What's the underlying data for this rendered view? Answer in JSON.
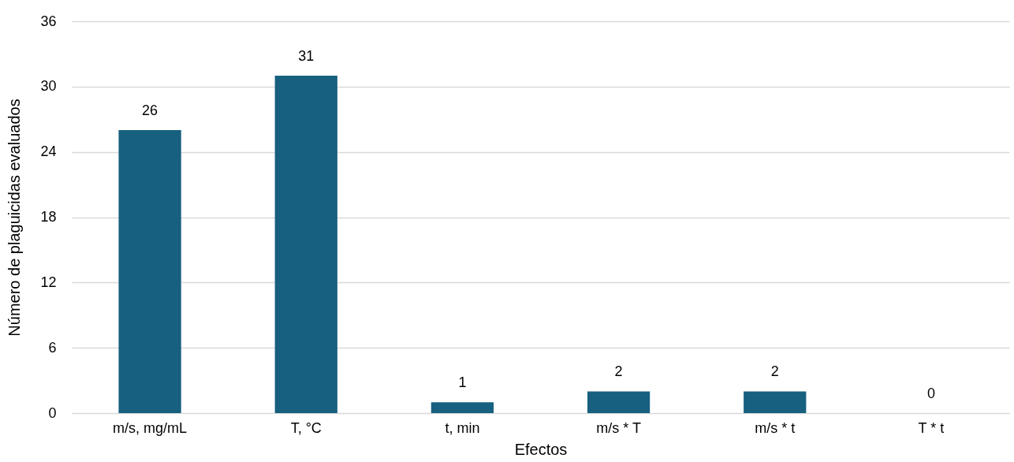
{
  "chart_data": {
    "type": "bar",
    "xlabel": "Efectos",
    "ylabel": "Número de plaguicidas evaluados",
    "categories": [
      "m/s, mg/mL",
      "T, °C",
      "t, min",
      "m/s * T",
      "m/s * t",
      "T * t"
    ],
    "values": [
      26,
      31,
      1,
      2,
      2,
      0
    ],
    "color": "#17607f",
    "ylim": [
      0,
      36
    ],
    "yticks": [
      0,
      6,
      12,
      18,
      24,
      30,
      36
    ],
    "grid": "y",
    "data_labels": true
  }
}
